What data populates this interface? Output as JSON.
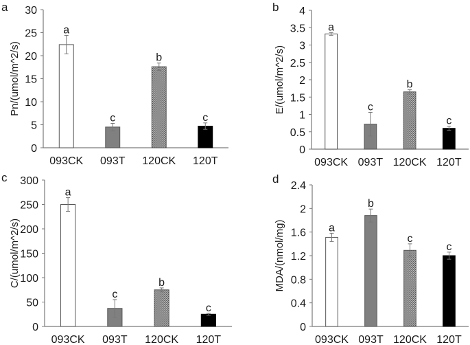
{
  "chart_data": [
    {
      "type": "bar",
      "panel": "a",
      "title": "",
      "xlabel": "",
      "ylabel": "Pn/(umol/m^2/s)",
      "categories": [
        "093CK",
        "093T",
        "120CK",
        "120T"
      ],
      "values": [
        22.4,
        4.5,
        17.6,
        4.7
      ],
      "errors": [
        2.0,
        0.8,
        0.8,
        0.7
      ],
      "significance": [
        "a",
        "c",
        "b",
        "c"
      ],
      "ylim": [
        0,
        30
      ],
      "yticks": [
        0,
        5,
        10,
        15,
        20,
        25,
        30
      ],
      "ytick_labels": [
        "0",
        "5",
        "10",
        "15",
        "20",
        "25",
        "30"
      ],
      "grid": false
    },
    {
      "type": "bar",
      "panel": "b",
      "title": "",
      "xlabel": "",
      "ylabel": "E/(umol/m^2/s)",
      "categories": [
        "093CK",
        "093T",
        "120CK",
        "120T"
      ],
      "values": [
        3.32,
        0.72,
        1.65,
        0.6
      ],
      "errors": [
        0.04,
        0.34,
        0.06,
        0.06
      ],
      "significance": [
        "a",
        "c",
        "b",
        "c"
      ],
      "ylim": [
        0,
        4
      ],
      "yticks": [
        0,
        0.5,
        1,
        1.5,
        2,
        2.5,
        3,
        3.5,
        4
      ],
      "ytick_labels": [
        "0",
        "0.5",
        "1",
        "1.5",
        "2",
        "2.5",
        "3",
        "3.5",
        "4"
      ],
      "grid": false
    },
    {
      "type": "bar",
      "panel": "c",
      "title": "",
      "xlabel": "",
      "ylabel": "C/(umol/m^2/s)",
      "categories": [
        "093CK",
        "093T",
        "120CK",
        "120T"
      ],
      "values": [
        250,
        37,
        75,
        25
      ],
      "errors": [
        14,
        18,
        4,
        2
      ],
      "significance": [
        "a",
        "c",
        "b",
        "c"
      ],
      "ylim": [
        0,
        300
      ],
      "yticks": [
        0,
        50,
        100,
        150,
        200,
        250,
        300
      ],
      "ytick_labels": [
        "0",
        "50",
        "100",
        "150",
        "200",
        "250",
        "300"
      ],
      "grid": false
    },
    {
      "type": "bar",
      "panel": "d",
      "title": "",
      "xlabel": "",
      "ylabel": "MDA/(nmol/mg)",
      "categories": [
        "093CK",
        "093T",
        "120CK",
        "120T"
      ],
      "values": [
        1.51,
        1.88,
        1.29,
        1.2
      ],
      "errors": [
        0.07,
        0.11,
        0.11,
        0.06
      ],
      "significance": [
        "a",
        "b",
        "c",
        "c"
      ],
      "ylim": [
        0,
        2.4
      ],
      "yticks": [
        0,
        0.4,
        0.8,
        1.2,
        1.6,
        2,
        2.4
      ],
      "ytick_labels": [
        "0",
        "0.4",
        "0.8",
        "1.2",
        "1.6",
        "2",
        "2.4"
      ],
      "grid": false
    }
  ],
  "bar_styles": [
    {
      "category": "093CK",
      "fill": "#ffffff",
      "stroke": "#555555",
      "pattern": "solid"
    },
    {
      "category": "093T",
      "fill": "#808080",
      "stroke": "#555555",
      "pattern": "solid"
    },
    {
      "category": "120CK",
      "fill": "#9a9a9a",
      "stroke": "#555555",
      "pattern": "checker"
    },
    {
      "category": "120T",
      "fill": "#000000",
      "stroke": "#000000",
      "pattern": "solid"
    }
  ]
}
